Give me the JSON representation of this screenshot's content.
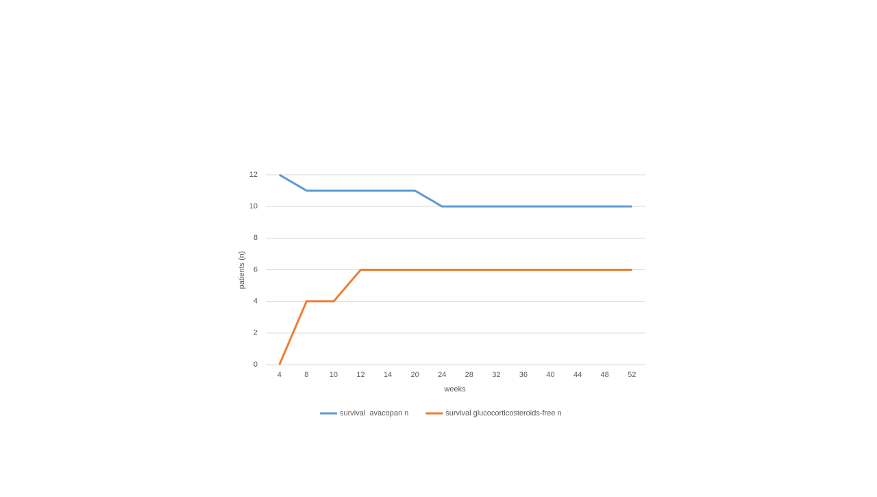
{
  "chart_data": {
    "type": "line",
    "x_label": "weeks",
    "y_label": "patients (n)",
    "categories": [
      "4",
      "8",
      "10",
      "12",
      "14",
      "20",
      "24",
      "28",
      "32",
      "36",
      "40",
      "44",
      "48",
      "52"
    ],
    "series": [
      {
        "name": "survival  avacopan n",
        "color": "#5b9bd5",
        "values": [
          12,
          11,
          11,
          11,
          11,
          11,
          10,
          10,
          10,
          10,
          10,
          10,
          10,
          10
        ]
      },
      {
        "name": "survival glucocorticosteroids-free n",
        "color": "#ed7d31",
        "values": [
          0,
          4,
          4,
          6,
          6,
          6,
          6,
          6,
          6,
          6,
          6,
          6,
          6,
          6
        ]
      }
    ],
    "ylim": [
      0,
      12
    ],
    "yticks": [
      0,
      2,
      4,
      6,
      8,
      10,
      12
    ],
    "grid": true,
    "legend": "bottom"
  }
}
